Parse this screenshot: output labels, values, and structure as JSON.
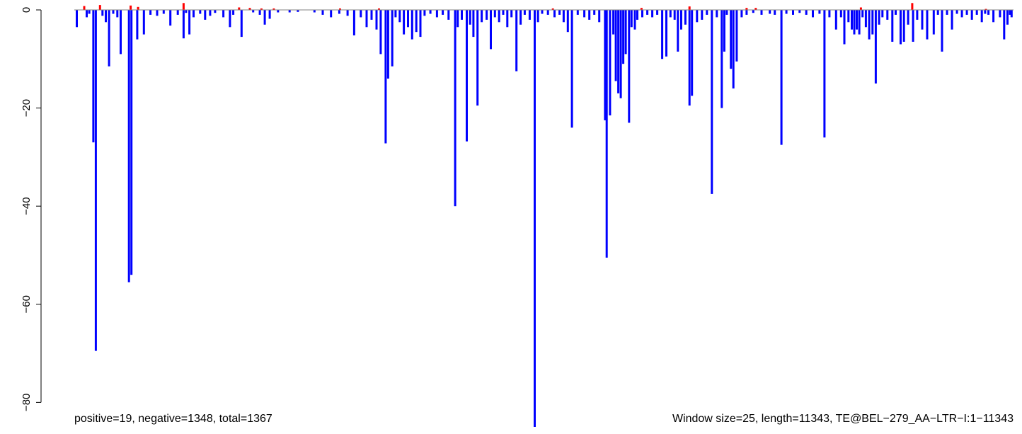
{
  "chart_data": {
    "type": "bar",
    "xlim": [
      0,
      11343
    ],
    "ylim": [
      -85,
      0
    ],
    "yticks": [
      {
        "value": 0,
        "label": "0"
      },
      {
        "value": -20,
        "label": "−20"
      },
      {
        "value": -40,
        "label": "−40"
      },
      {
        "value": -60,
        "label": "−60"
      },
      {
        "value": -80,
        "label": "−80"
      }
    ],
    "grid": false,
    "legend": "none",
    "series": [
      {
        "color": "#ff0000",
        "values": [
          [
            120,
            0.8
          ],
          [
            310,
            1.0
          ],
          [
            680,
            0.9
          ],
          [
            770,
            0.6
          ],
          [
            1320,
            1.4
          ],
          [
            1990,
            0.5
          ],
          [
            2120,
            0.4
          ],
          [
            2260,
            0.3
          ],
          [
            2410,
            0.3
          ],
          [
            3210,
            0.3
          ],
          [
            3680,
            0.3
          ],
          [
            5780,
            0.3
          ],
          [
            6850,
            0.4
          ],
          [
            7430,
            0.7
          ],
          [
            8120,
            0.4
          ],
          [
            8230,
            0.4
          ],
          [
            9500,
            0.5
          ],
          [
            10120,
            1.4
          ],
          [
            11010,
            0.2
          ]
        ]
      },
      {
        "color": "#0000ff",
        "values": [
          [
            30,
            -3.5
          ],
          [
            150,
            -1.5
          ],
          [
            180,
            -0.8
          ],
          [
            230,
            -27.0
          ],
          [
            260,
            -69.5
          ],
          [
            340,
            -1.2
          ],
          [
            380,
            -2.5
          ],
          [
            420,
            -11.5
          ],
          [
            470,
            -0.8
          ],
          [
            520,
            -1.5
          ],
          [
            560,
            -9.0
          ],
          [
            660,
            -55.5
          ],
          [
            690,
            -54.0
          ],
          [
            760,
            -6.0
          ],
          [
            840,
            -5.0
          ],
          [
            920,
            -1.0
          ],
          [
            1000,
            -1.2
          ],
          [
            1080,
            -0.8
          ],
          [
            1160,
            -3.2
          ],
          [
            1250,
            -1.0
          ],
          [
            1320,
            -5.8
          ],
          [
            1350,
            -0.6
          ],
          [
            1390,
            -5.0
          ],
          [
            1440,
            -1.5
          ],
          [
            1520,
            -0.8
          ],
          [
            1580,
            -2.0
          ],
          [
            1640,
            -1.2
          ],
          [
            1700,
            -0.6
          ],
          [
            1800,
            -1.5
          ],
          [
            1880,
            -3.5
          ],
          [
            1920,
            -1.0
          ],
          [
            2020,
            -5.5
          ],
          [
            2160,
            -0.5
          ],
          [
            2240,
            -1.0
          ],
          [
            2300,
            -3.0
          ],
          [
            2360,
            -1.8
          ],
          [
            2460,
            -0.5
          ],
          [
            2600,
            -0.5
          ],
          [
            2700,
            -0.4
          ],
          [
            2900,
            -0.5
          ],
          [
            3000,
            -1.0
          ],
          [
            3100,
            -1.5
          ],
          [
            3200,
            -0.8
          ],
          [
            3300,
            -1.2
          ],
          [
            3380,
            -5.2
          ],
          [
            3460,
            -1.5
          ],
          [
            3530,
            -3.5
          ],
          [
            3590,
            -2.0
          ],
          [
            3650,
            -4.0
          ],
          [
            3700,
            -9.0
          ],
          [
            3760,
            -27.2
          ],
          [
            3790,
            -14.0
          ],
          [
            3840,
            -11.5
          ],
          [
            3880,
            -1.5
          ],
          [
            3930,
            -2.5
          ],
          [
            3980,
            -5.0
          ],
          [
            4030,
            -3.5
          ],
          [
            4080,
            -6.0
          ],
          [
            4130,
            -4.5
          ],
          [
            4180,
            -5.5
          ],
          [
            4230,
            -1.2
          ],
          [
            4300,
            -0.8
          ],
          [
            4380,
            -1.5
          ],
          [
            4450,
            -1.0
          ],
          [
            4520,
            -2.0
          ],
          [
            4600,
            -40.0
          ],
          [
            4630,
            -3.5
          ],
          [
            4680,
            -2.0
          ],
          [
            4740,
            -26.8
          ],
          [
            4780,
            -3.0
          ],
          [
            4820,
            -5.5
          ],
          [
            4870,
            -19.5
          ],
          [
            4920,
            -2.5
          ],
          [
            4980,
            -2.0
          ],
          [
            5030,
            -8.0
          ],
          [
            5080,
            -1.5
          ],
          [
            5130,
            -2.5
          ],
          [
            5180,
            -1.0
          ],
          [
            5230,
            -3.5
          ],
          [
            5280,
            -1.5
          ],
          [
            5340,
            -12.5
          ],
          [
            5390,
            -3.0
          ],
          [
            5440,
            -1.0
          ],
          [
            5500,
            -2.0
          ],
          [
            5560,
            -85.0
          ],
          [
            5600,
            -2.5
          ],
          [
            5650,
            -0.8
          ],
          [
            5720,
            -1.0
          ],
          [
            5800,
            -1.5
          ],
          [
            5860,
            -1.0
          ],
          [
            5910,
            -2.5
          ],
          [
            5960,
            -4.5
          ],
          [
            6010,
            -24.0
          ],
          [
            6080,
            -1.0
          ],
          [
            6160,
            -1.5
          ],
          [
            6220,
            -2.0
          ],
          [
            6280,
            -1.0
          ],
          [
            6340,
            -2.5
          ],
          [
            6410,
            -22.5
          ],
          [
            6430,
            -50.5
          ],
          [
            6470,
            -21.5
          ],
          [
            6510,
            -5.0
          ],
          [
            6540,
            -14.5
          ],
          [
            6570,
            -17.0
          ],
          [
            6600,
            -18.0
          ],
          [
            6630,
            -11.0
          ],
          [
            6660,
            -9.0
          ],
          [
            6700,
            -23.0
          ],
          [
            6730,
            -3.5
          ],
          [
            6770,
            -4.0
          ],
          [
            6800,
            -2.0
          ],
          [
            6860,
            -1.5
          ],
          [
            6920,
            -1.0
          ],
          [
            6980,
            -1.5
          ],
          [
            7040,
            -1.0
          ],
          [
            7100,
            -10.0
          ],
          [
            7150,
            -9.5
          ],
          [
            7200,
            -1.5
          ],
          [
            7250,
            -2.0
          ],
          [
            7290,
            -8.5
          ],
          [
            7330,
            -4.0
          ],
          [
            7380,
            -3.0
          ],
          [
            7430,
            -19.5
          ],
          [
            7460,
            -17.5
          ],
          [
            7520,
            -2.5
          ],
          [
            7580,
            -2.0
          ],
          [
            7640,
            -1.0
          ],
          [
            7700,
            -37.5
          ],
          [
            7760,
            -1.5
          ],
          [
            7820,
            -20.0
          ],
          [
            7850,
            -8.5
          ],
          [
            7880,
            -1.0
          ],
          [
            7930,
            -12.0
          ],
          [
            7960,
            -16.0
          ],
          [
            8000,
            -10.5
          ],
          [
            8060,
            -1.5
          ],
          [
            8120,
            -1.0
          ],
          [
            8200,
            -0.6
          ],
          [
            8300,
            -1.0
          ],
          [
            8400,
            -0.8
          ],
          [
            8460,
            -1.0
          ],
          [
            8540,
            -27.5
          ],
          [
            8600,
            -0.8
          ],
          [
            8680,
            -1.0
          ],
          [
            8760,
            -0.6
          ],
          [
            8840,
            -1.0
          ],
          [
            8920,
            -1.5
          ],
          [
            9000,
            -0.8
          ],
          [
            9060,
            -26.0
          ],
          [
            9120,
            -1.5
          ],
          [
            9200,
            -4.0
          ],
          [
            9260,
            -1.5
          ],
          [
            9300,
            -7.0
          ],
          [
            9350,
            -2.5
          ],
          [
            9390,
            -4.0
          ],
          [
            9420,
            -5.0
          ],
          [
            9450,
            -4.0
          ],
          [
            9480,
            -5.0
          ],
          [
            9520,
            -1.5
          ],
          [
            9560,
            -3.5
          ],
          [
            9600,
            -6.0
          ],
          [
            9640,
            -5.0
          ],
          [
            9680,
            -15.0
          ],
          [
            9720,
            -3.0
          ],
          [
            9760,
            -1.5
          ],
          [
            9820,
            -2.0
          ],
          [
            9880,
            -6.5
          ],
          [
            9920,
            -1.0
          ],
          [
            9980,
            -7.0
          ],
          [
            10020,
            -6.5
          ],
          [
            10070,
            -3.0
          ],
          [
            10130,
            -6.5
          ],
          [
            10180,
            -2.0
          ],
          [
            10240,
            -4.0
          ],
          [
            10300,
            -6.0
          ],
          [
            10380,
            -5.0
          ],
          [
            10430,
            -1.0
          ],
          [
            10480,
            -8.5
          ],
          [
            10540,
            -1.0
          ],
          [
            10600,
            -4.0
          ],
          [
            10660,
            -0.8
          ],
          [
            10720,
            -1.5
          ],
          [
            10780,
            -1.0
          ],
          [
            10840,
            -2.0
          ],
          [
            10900,
            -1.0
          ],
          [
            10960,
            -2.5
          ],
          [
            11000,
            -0.8
          ],
          [
            11040,
            -1.0
          ],
          [
            11100,
            -2.5
          ],
          [
            11180,
            -1.5
          ],
          [
            11230,
            -6.0
          ],
          [
            11270,
            -3.0
          ],
          [
            11300,
            -1.0
          ],
          [
            11320,
            -1.5
          ]
        ]
      }
    ]
  },
  "footer": {
    "left_text": "positive=19, negative=1348, total=1367",
    "right_text": "Window size=25, length=11343, TE@BEL−279_AA−LTR−I:1−11343"
  }
}
